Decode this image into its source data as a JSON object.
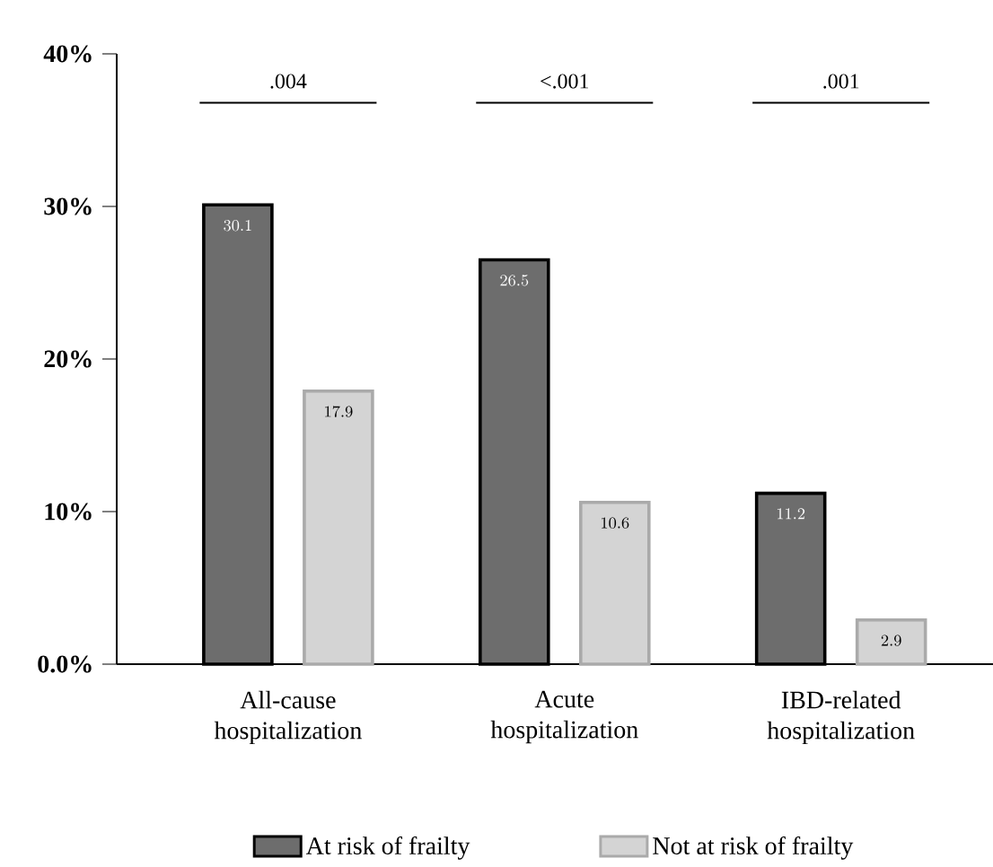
{
  "chart_data": {
    "type": "bar",
    "categories": [
      "All-cause hospitalization",
      "Acute hospitalization",
      "IBD-related hospitalization"
    ],
    "series": [
      {
        "name": "At risk of frailty",
        "color": "#6d6d6d",
        "values": [
          30.1,
          26.5,
          11.2
        ]
      },
      {
        "name": "Not at risk of frailty",
        "color": "#d4d4d4",
        "values": [
          17.9,
          10.6,
          2.9
        ]
      }
    ],
    "ylim": [
      0,
      40
    ],
    "yticks": [
      {
        "value": 0,
        "label": "0.0%"
      },
      {
        "value": 10,
        "label": "10%"
      },
      {
        "value": 20,
        "label": "20%"
      },
      {
        "value": 30,
        "label": "30%"
      },
      {
        "value": 40,
        "label": "40%"
      }
    ],
    "data_labels": true,
    "annotations": [
      ".004",
      "<.001",
      ".001"
    ],
    "legend": "bottom"
  }
}
